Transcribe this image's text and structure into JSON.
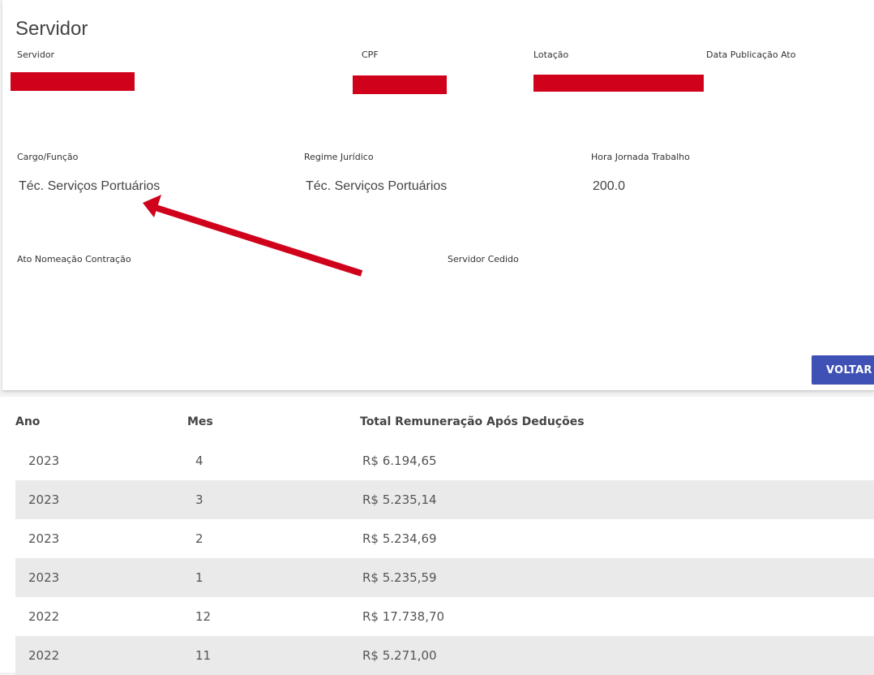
{
  "card": {
    "title": "Servidor",
    "labels": {
      "servidor": "Servidor",
      "cpf": "CPF",
      "lotacao": "Lotação",
      "data_publicacao": "Data Publicação Ato",
      "cargo": "Cargo/Função",
      "regime": "Regime Jurídico",
      "hora_jornada": "Hora Jornada Trabalho",
      "ato_nomeacao": "Ato Nomeação Contração",
      "servidor_cedido": "Servidor Cedido"
    },
    "values": {
      "cargo": "Téc. Serviços Portuários",
      "regime": "Téc. Serviços Portuários",
      "hora_jornada": "200.0"
    },
    "voltar_label": "VOLTAR",
    "redaction_color": "#d0021b",
    "button_color": "#3f51b5"
  },
  "table": {
    "headers": [
      "Ano",
      "Mes",
      "Total Remuneração Após Deduções"
    ],
    "rows": [
      {
        "ano": "2023",
        "mes": "4",
        "total": "R$ 6.194,65"
      },
      {
        "ano": "2023",
        "mes": "3",
        "total": "R$ 5.235,14"
      },
      {
        "ano": "2023",
        "mes": "2",
        "total": "R$ 5.234,69"
      },
      {
        "ano": "2023",
        "mes": "1",
        "total": "R$ 5.235,59"
      },
      {
        "ano": "2022",
        "mes": "12",
        "total": "R$ 17.738,70"
      },
      {
        "ano": "2022",
        "mes": "11",
        "total": "R$ 5.271,00"
      }
    ]
  }
}
